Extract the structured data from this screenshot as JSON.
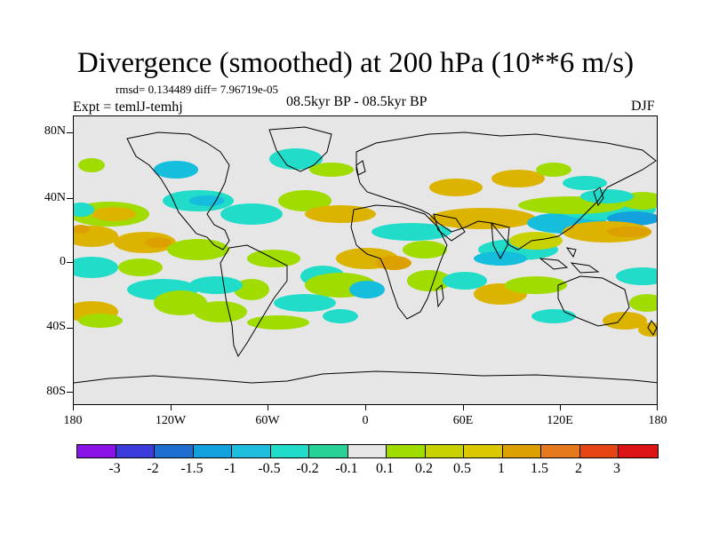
{
  "title": "Divergence (smoothed) at 200 hPa (10**6 m/s)",
  "stats": "rmsd= 0.134489 diff= 7.96719e-05",
  "expt": "Expt = temlJ-temhj",
  "period": "08.5kyr BP - 08.5kyr BP",
  "season": "DJF",
  "y_labels": [
    "80N",
    "40N",
    "0",
    "40S",
    "80S"
  ],
  "x_labels": [
    "180",
    "120W",
    "60W",
    "0",
    "60E",
    "120E",
    "180"
  ],
  "legend": {
    "colors": [
      "#8a14e6",
      "#3c3cdc",
      "#1e6ed2",
      "#14a0dc",
      "#1ebedc",
      "#20dcc8",
      "#28d296",
      "#e6e6e6",
      "#a0dc00",
      "#c8d200",
      "#dcc800",
      "#dca000",
      "#e6781e",
      "#e64614",
      "#dc1414"
    ],
    "labels": [
      "-3",
      "-2",
      "-1.5",
      "-1",
      "-0.5",
      "-0.2",
      "-0.1",
      "0.1",
      "0.2",
      "0.5",
      "1",
      "1.5",
      "2",
      "3"
    ]
  },
  "colors": {
    "cyan_light": "#20dcc8",
    "cyan": "#14bedc",
    "cyan_dark": "#14a0dc",
    "green": "#a0dc00",
    "yellow": "#c8d200",
    "orange": "#dcb400",
    "orange_dark": "#dca000"
  }
}
